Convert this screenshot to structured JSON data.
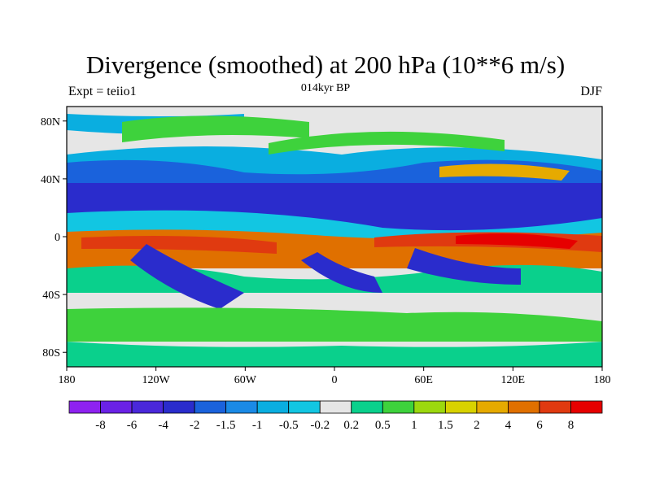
{
  "header": {
    "title": "Divergence (smoothed) at 200 hPa (10**6 m/s)",
    "left_string": "Expt = teiio1",
    "center_string": "014kyr BP",
    "right_string": "DJF"
  },
  "map": {
    "projection": "cylindrical equidistant",
    "lon_range": [
      -180,
      180
    ],
    "lat_range": [
      -90,
      90
    ],
    "lon_ticks": [
      "180",
      "120W",
      "60W",
      "0",
      "60E",
      "120E",
      "180"
    ],
    "lat_ticks": [
      "80N",
      "40N",
      "0",
      "40S",
      "80S"
    ]
  },
  "colorbar": {
    "colors": [
      "#8e22f0",
      "#6a22e6",
      "#4a28da",
      "#2a2ccc",
      "#1a62dc",
      "#1a8ae6",
      "#0aaee0",
      "#12c6e2",
      "#e6e6e6",
      "#0ad08c",
      "#3ed23c",
      "#9cd80e",
      "#d8d200",
      "#e6aa00",
      "#e07000",
      "#e03a10",
      "#e60000"
    ],
    "labels": [
      "-8",
      "-6",
      "-4",
      "-2",
      "-1.5",
      "-1",
      "-0.5",
      "-0.2",
      "0.2",
      "0.5",
      "1",
      "1.5",
      "2",
      "4",
      "6",
      "8"
    ]
  }
}
